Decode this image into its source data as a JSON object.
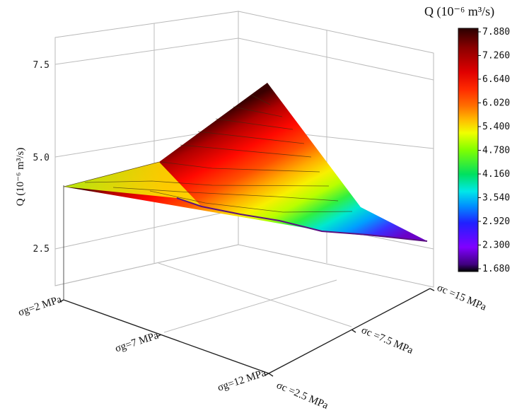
{
  "chart_data": {
    "type": "surface3d",
    "title": "",
    "zlabel": "Q (10⁻⁶ m³/s)",
    "colorbar_title": "Q (10⁻⁶ m³/s)",
    "z_ticks": [
      "2.5",
      "5.0",
      "7.5"
    ],
    "x_axis": {
      "name": "σg",
      "categories": [
        "σg=2 MPa",
        "σg=7 MPa",
        "σg=12 MPa"
      ],
      "values_mpa": [
        2,
        7,
        12
      ]
    },
    "y_axis": {
      "name": "σc",
      "categories": [
        "σc =2.5 MPa",
        "σc =7.5 MPa",
        "σc =15 MPa"
      ],
      "values_mpa": [
        2.5,
        7.5,
        15
      ]
    },
    "z_values": {
      "rows": "σg = 2, 7, 12 MPa",
      "cols": "σc = 2.5, 7.5, 15 MPa",
      "data": [
        [
          3.95,
          3.7,
          2.5
        ],
        [
          4.8,
          4.4,
          1.9
        ],
        [
          7.9,
          4.5,
          1.7
        ]
      ]
    },
    "colorbar": {
      "min": 1.68,
      "max": 7.88,
      "ticks": [
        "7.880",
        "7.260",
        "6.640",
        "6.020",
        "5.400",
        "4.780",
        "4.160",
        "3.540",
        "2.920",
        "2.300",
        "1.680"
      ],
      "colors": [
        "#2a0000",
        "#8b0000",
        "#e00000",
        "#ff2a00",
        "#ff7000",
        "#ffc000",
        "#f0ff00",
        "#80ff00",
        "#00e060",
        "#00e8e8",
        "#0090ff",
        "#2020ff",
        "#8000ff",
        "#400080",
        "#000000"
      ]
    },
    "grid": true
  }
}
